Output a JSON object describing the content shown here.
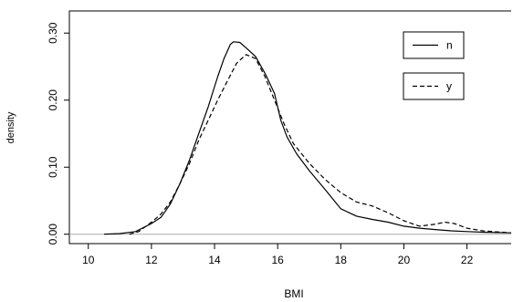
{
  "chart_data": {
    "type": "line",
    "title": "",
    "xlabel": "BMI",
    "ylabel": "density",
    "xlim": [
      9.4,
      23.4
    ],
    "ylim": [
      -0.014,
      0.333
    ],
    "x_ticks": [
      10,
      12,
      14,
      16,
      18,
      20,
      22
    ],
    "y_ticks": [
      0.0,
      0.1,
      0.2,
      0.3
    ],
    "x_tick_labels": [
      "10",
      "12",
      "14",
      "16",
      "18",
      "20",
      "22"
    ],
    "y_tick_labels": [
      "0.00",
      "0.10",
      "0.20",
      "0.30"
    ],
    "grid": false,
    "baseline": 0,
    "legend": {
      "position": "top-right"
    },
    "series": [
      {
        "name": "n",
        "line_style": "solid",
        "color": "#000000",
        "points": [
          [
            10.5,
            0.0
          ],
          [
            11.0,
            0.001
          ],
          [
            11.5,
            0.004
          ],
          [
            12.0,
            0.016
          ],
          [
            12.3,
            0.025
          ],
          [
            12.6,
            0.045
          ],
          [
            12.9,
            0.075
          ],
          [
            13.2,
            0.11
          ],
          [
            13.5,
            0.15
          ],
          [
            13.8,
            0.19
          ],
          [
            14.1,
            0.235
          ],
          [
            14.3,
            0.262
          ],
          [
            14.5,
            0.283
          ],
          [
            14.6,
            0.287
          ],
          [
            14.8,
            0.286
          ],
          [
            15.0,
            0.278
          ],
          [
            15.3,
            0.265
          ],
          [
            15.6,
            0.24
          ],
          [
            15.9,
            0.21
          ],
          [
            16.1,
            0.17
          ],
          [
            16.3,
            0.145
          ],
          [
            16.6,
            0.12
          ],
          [
            17.0,
            0.095
          ],
          [
            17.5,
            0.067
          ],
          [
            18.0,
            0.038
          ],
          [
            18.5,
            0.027
          ],
          [
            19.0,
            0.022
          ],
          [
            19.5,
            0.018
          ],
          [
            20.0,
            0.012
          ],
          [
            20.5,
            0.009
          ],
          [
            21.0,
            0.007
          ],
          [
            21.5,
            0.005
          ],
          [
            22.0,
            0.004
          ],
          [
            22.5,
            0.003
          ],
          [
            23.4,
            0.002
          ]
        ]
      },
      {
        "name": "y",
        "line_style": "dashed",
        "color": "#000000",
        "points": [
          [
            11.3,
            0.0
          ],
          [
            11.6,
            0.004
          ],
          [
            12.0,
            0.018
          ],
          [
            12.3,
            0.03
          ],
          [
            12.6,
            0.048
          ],
          [
            12.9,
            0.075
          ],
          [
            13.2,
            0.105
          ],
          [
            13.5,
            0.14
          ],
          [
            13.8,
            0.17
          ],
          [
            14.1,
            0.2
          ],
          [
            14.4,
            0.228
          ],
          [
            14.7,
            0.255
          ],
          [
            15.0,
            0.268
          ],
          [
            15.3,
            0.262
          ],
          [
            15.6,
            0.235
          ],
          [
            15.9,
            0.2
          ],
          [
            16.2,
            0.165
          ],
          [
            16.5,
            0.135
          ],
          [
            17.0,
            0.106
          ],
          [
            17.5,
            0.082
          ],
          [
            18.0,
            0.062
          ],
          [
            18.5,
            0.048
          ],
          [
            19.0,
            0.042
          ],
          [
            19.5,
            0.032
          ],
          [
            20.0,
            0.02
          ],
          [
            20.5,
            0.012
          ],
          [
            21.0,
            0.015
          ],
          [
            21.3,
            0.018
          ],
          [
            21.6,
            0.016
          ],
          [
            22.0,
            0.009
          ],
          [
            22.5,
            0.005
          ],
          [
            23.4,
            0.002
          ]
        ]
      }
    ]
  }
}
